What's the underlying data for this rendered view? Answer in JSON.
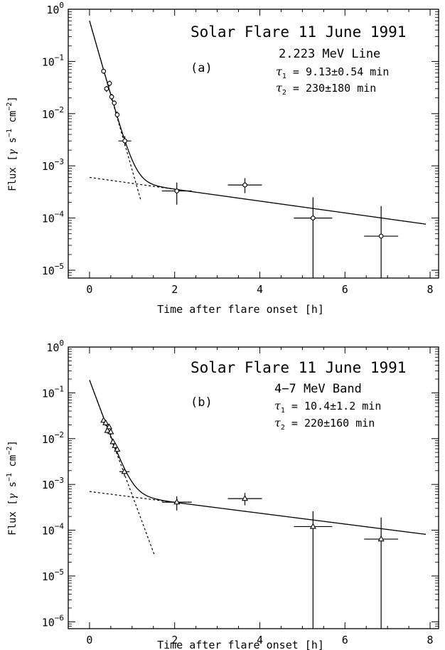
{
  "chart_data": [
    {
      "type": "scatter",
      "panel_label": "(a)",
      "title": "Solar Flare 11 June 1991",
      "subtitle": "2.223 MeV Line",
      "params": [
        {
          "sym": "τ",
          "sub": "1",
          "text": " = 9.13±0.54 min"
        },
        {
          "sym": "τ",
          "sub": "2",
          "text": " = 230±180 min"
        }
      ],
      "xlabel": "Time after flare onset [h]",
      "ylabel_parts": {
        "pre": "Flux [",
        "gamma": "γ",
        "s": " s",
        "s_exp": "−1",
        "cm": " cm",
        "cm_exp": "−2",
        "post": "]"
      },
      "xlim": [
        -0.5,
        8.2
      ],
      "ylim_log10": [
        -5.15,
        0
      ],
      "yscale": "log",
      "xticks": [
        0,
        2,
        4,
        6,
        8
      ],
      "yticks_exp": [
        "0",
        "−1",
        "−2",
        "−3",
        "−4",
        "−5"
      ],
      "marker": "circle",
      "series": [
        {
          "points": [
            {
              "x": 0.33,
              "y": 0.065,
              "xerr": 0.03,
              "ylo": 0.058,
              "yhi": 0.072
            },
            {
              "x": 0.4,
              "y": 0.03,
              "xerr": 0.03,
              "ylo": 0.026,
              "yhi": 0.034
            },
            {
              "x": 0.47,
              "y": 0.038,
              "xerr": 0.03,
              "ylo": 0.033,
              "yhi": 0.043
            },
            {
              "x": 0.52,
              "y": 0.021,
              "xerr": 0.03,
              "ylo": 0.018,
              "yhi": 0.024
            },
            {
              "x": 0.58,
              "y": 0.016,
              "xerr": 0.03,
              "ylo": 0.014,
              "yhi": 0.018
            },
            {
              "x": 0.65,
              "y": 0.0095,
              "xerr": 0.03,
              "ylo": 0.0082,
              "yhi": 0.011
            },
            {
              "x": 0.83,
              "y": 0.003,
              "xerr": 0.15,
              "ylo": 0.0024,
              "yhi": 0.0037
            },
            {
              "x": 2.05,
              "y": 0.00033,
              "xerr": 0.35,
              "ylo": 0.00018,
              "yhi": 0.00048
            },
            {
              "x": 3.65,
              "y": 0.00043,
              "xerr": 0.4,
              "ylo": 0.0003,
              "yhi": 0.00058
            },
            {
              "x": 5.25,
              "y": 0.0001,
              "xerr": 0.45,
              "ylo": 7.1e-06,
              "yhi": 0.00025
            },
            {
              "x": 6.85,
              "y": 4.5e-05,
              "xerr": 0.4,
              "ylo": 7.1e-06,
              "yhi": 0.00017
            }
          ]
        }
      ],
      "fit": {
        "A1": 0.6,
        "tau1_h": 0.1522,
        "A2": 0.0006,
        "tau2_h": 3.833,
        "x_end": 7.9,
        "steep_dotted_end": 1.2
      }
    },
    {
      "type": "scatter",
      "panel_label": "(b)",
      "title": "Solar Flare 11 June 1991",
      "subtitle": "4−7 MeV Band",
      "params": [
        {
          "sym": "τ",
          "sub": "1",
          "text": " = 10.4±1.2 min"
        },
        {
          "sym": "τ",
          "sub": "2",
          "text": " = 220±160 min"
        }
      ],
      "xlabel": "Time after flare onset [h]",
      "ylabel_parts": {
        "pre": "Flux [",
        "gamma": "γ",
        "s": " s",
        "s_exp": "−1",
        "cm": " cm",
        "cm_exp": "−2",
        "post": "]"
      },
      "xlim": [
        -0.5,
        8.2
      ],
      "ylim_log10": [
        -6.15,
        0
      ],
      "yscale": "log",
      "xticks": [
        0,
        2,
        4,
        6,
        8
      ],
      "yticks_exp": [
        "0",
        "−1",
        "−2",
        "−3",
        "−4",
        "−5",
        "−6"
      ],
      "marker": "triangle",
      "series": [
        {
          "points": [
            {
              "x": 0.33,
              "y": 0.025,
              "xerr": 0.03,
              "ylo": 0.022,
              "yhi": 0.028
            },
            {
              "x": 0.38,
              "y": 0.022,
              "xerr": 0.03,
              "ylo": 0.019,
              "yhi": 0.025
            },
            {
              "x": 0.42,
              "y": 0.015,
              "xerr": 0.03,
              "ylo": 0.013,
              "yhi": 0.017
            },
            {
              "x": 0.46,
              "y": 0.018,
              "xerr": 0.03,
              "ylo": 0.016,
              "yhi": 0.021
            },
            {
              "x": 0.5,
              "y": 0.014,
              "xerr": 0.03,
              "ylo": 0.012,
              "yhi": 0.016
            },
            {
              "x": 0.55,
              "y": 0.0085,
              "xerr": 0.03,
              "ylo": 0.0074,
              "yhi": 0.0097
            },
            {
              "x": 0.6,
              "y": 0.007,
              "xerr": 0.03,
              "ylo": 0.006,
              "yhi": 0.008
            },
            {
              "x": 0.65,
              "y": 0.0058,
              "xerr": 0.03,
              "ylo": 0.005,
              "yhi": 0.0067
            },
            {
              "x": 0.82,
              "y": 0.0019,
              "xerr": 0.12,
              "ylo": 0.0015,
              "yhi": 0.0023
            },
            {
              "x": 2.05,
              "y": 0.00041,
              "xerr": 0.35,
              "ylo": 0.00027,
              "yhi": 0.00055
            },
            {
              "x": 3.65,
              "y": 0.00049,
              "xerr": 0.4,
              "ylo": 0.00035,
              "yhi": 0.00065
            },
            {
              "x": 5.25,
              "y": 0.00012,
              "xerr": 0.45,
              "ylo": 7e-07,
              "yhi": 0.00026
            },
            {
              "x": 6.85,
              "y": 6.4e-05,
              "xerr": 0.4,
              "ylo": 7e-07,
              "yhi": 0.00019
            }
          ]
        }
      ],
      "fit": {
        "A1": 0.19,
        "tau1_h": 0.1733,
        "A2": 0.0007,
        "tau2_h": 3.667,
        "x_end": 7.9,
        "steep_dotted_end": 1.52
      }
    }
  ]
}
